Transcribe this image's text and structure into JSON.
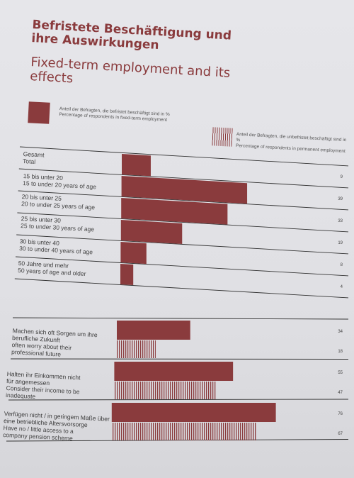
{
  "title": {
    "de": "Befristete Beschäftigung und ihre Auswirkungen",
    "en": "Fixed-term employment and its effects"
  },
  "legend": {
    "fixed_de": "Anteil der Befragten, die befristet beschäftigt sind in %",
    "fixed_en": "Percentage of respondents in fixed-term employment",
    "permanent_de": "Anteil der Befragten, die unbefristet beschäftigt sind in %",
    "permanent_en": "Percentage of respondents in permanent employment"
  },
  "colors": {
    "fixed": "#8a3b3d",
    "permanent": "#8a3b3d"
  },
  "chart_data": [
    {
      "type": "bar",
      "categories": [
        "Gesamt / Total",
        "15 bis unter 20 / 15 to under 20 years of age",
        "20 bis unter 25 / 20 to under 25 years of age",
        "25 bis unter 30 / 25 to under 30 years of age",
        "30 bis unter 40 / 30 to under 40 years of age",
        "50 Jahre und mehr / 50 years of age and older"
      ],
      "rows": [
        {
          "de": "Gesamt",
          "en": "Total"
        },
        {
          "de": "15 bis unter 20",
          "en": "15 to under 20 years of age"
        },
        {
          "de": "20 bis unter 25",
          "en": "20 to under 25 years of age"
        },
        {
          "de": "25 bis unter 30",
          "en": "25 to under 30 years of age"
        },
        {
          "de": "30 bis unter 40",
          "en": "30 to under 40 years of age"
        },
        {
          "de": "50 Jahre und mehr",
          "en": "50 years of age and older"
        }
      ],
      "series": [
        {
          "values": [
            9,
            39,
            33,
            19,
            8,
            4
          ]
        }
      ],
      "value_labels": [
        "9",
        "39",
        "33",
        "19",
        "8",
        "4"
      ]
    },
    {
      "type": "bar",
      "rows": [
        {
          "de": "Machen sich oft Sorgen um ihre berufliche Zukunft",
          "en": "often worry about their professional future"
        },
        {
          "de": "Halten ihr Einkommen nicht für angemessen",
          "en": "Consider their income to be inadequate"
        },
        {
          "de": "Verfügen nicht / in geringem Maße über eine betriebliche Altersvorsorge",
          "en": "Have no / little access to a company pension scheme"
        }
      ],
      "series": [
        {
          "values": [
            34,
            55,
            76
          ]
        },
        {
          "values": [
            18,
            47,
            67
          ]
        }
      ],
      "value_labels_fixed": [
        "34",
        "55",
        "76"
      ],
      "value_labels_permanent": [
        "18",
        "47",
        "67"
      ]
    }
  ]
}
